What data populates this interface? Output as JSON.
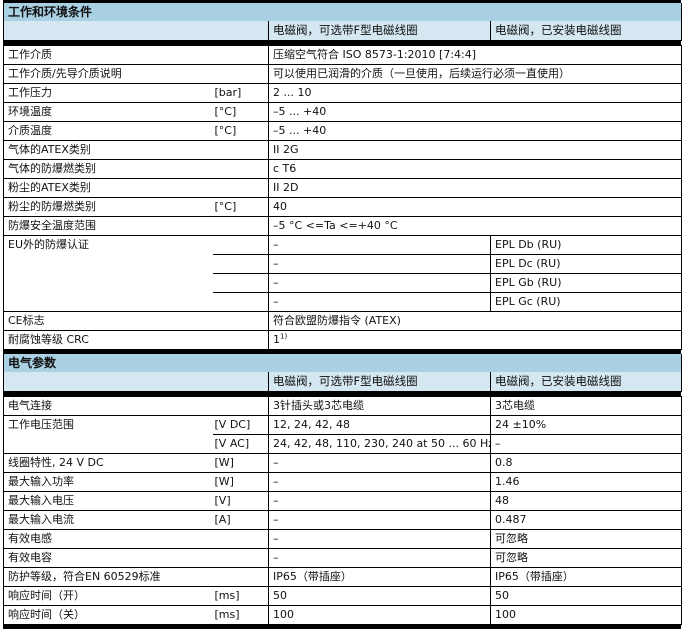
{
  "sections": [
    {
      "title": "工作和环境条件",
      "col_headers": [
        "电磁阀，可选带F型电磁线圈",
        "电磁阀，已安装电磁线圈"
      ],
      "groups": [
        {
          "label": "工作介质",
          "rows": [
            {
              "unit": "",
              "a": "压缩空气符合 ISO 8573-1:2010 [7:4:4]"
            }
          ]
        },
        {
          "label": "工作介质/先导介质说明",
          "rows": [
            {
              "unit": "",
              "a": "可以使用已润滑的介质（一旦使用，后续运行必须一直使用）"
            }
          ]
        },
        {
          "label": "工作压力",
          "rows": [
            {
              "unit": "[bar]",
              "a": "2 ... 10"
            }
          ]
        },
        {
          "label": "环境温度",
          "rows": [
            {
              "unit": "[°C]",
              "a": "–5 ... +40"
            }
          ]
        },
        {
          "label": "介质温度",
          "rows": [
            {
              "unit": "[°C]",
              "a": "–5 ... +40"
            }
          ]
        },
        {
          "label": "气体的ATEX类别",
          "rows": [
            {
              "unit": "",
              "a": "II 2G"
            }
          ]
        },
        {
          "label": "气体的防爆燃类别",
          "rows": [
            {
              "unit": "",
              "a": "c T6"
            }
          ]
        },
        {
          "label": "粉尘的ATEX类别",
          "rows": [
            {
              "unit": "",
              "a": "II 2D"
            }
          ]
        },
        {
          "label": "粉尘的防爆燃类别",
          "rows": [
            {
              "unit": "[°C]",
              "a": "40"
            }
          ]
        },
        {
          "label": "防爆安全温度范围",
          "rows": [
            {
              "unit": "",
              "a": "–5 °C <=Ta <=+40 °C"
            }
          ]
        },
        {
          "label": "EU外的防爆认证",
          "rows": [
            {
              "unit": "",
              "a": "–",
              "b": "EPL Db (RU)"
            },
            {
              "unit": "",
              "a": "–",
              "b": "EPL Dc (RU)"
            },
            {
              "unit": "",
              "a": "–",
              "b": "EPL Gb (RU)"
            },
            {
              "unit": "",
              "a": "–",
              "b": "EPL Gc (RU)"
            }
          ]
        },
        {
          "label": "CE标志",
          "rows": [
            {
              "unit": "",
              "a": "符合欧盟防爆指令 (ATEX)"
            }
          ]
        },
        {
          "label": "耐腐蚀等级 CRC",
          "rows": [
            {
              "unit": "",
              "a": "1",
              "a_sup": "1)"
            }
          ]
        }
      ]
    },
    {
      "title": "电气参数",
      "col_headers": [
        "电磁阀，可选带F型电磁线圈",
        "电磁阀，已安装电磁线圈"
      ],
      "groups": [
        {
          "label": "电气连接",
          "rows": [
            {
              "unit": "",
              "a": "3针插头或3芯电缆",
              "b": "3芯电缆"
            }
          ]
        },
        {
          "label": "工作电压范围",
          "rows": [
            {
              "unit": "[V DC]",
              "a": "12, 24, 42, 48",
              "b": "24 ±10%"
            },
            {
              "unit": "[V AC]",
              "a": "24, 42, 48, 110, 230, 240 at 50 ... 60 Hz",
              "b": "–"
            }
          ]
        },
        {
          "label": "线圈特性, 24 V DC",
          "rows": [
            {
              "unit": "[W]",
              "a": "–",
              "b": "0.8"
            }
          ]
        },
        {
          "label": "最大输入功率",
          "rows": [
            {
              "unit": "[W]",
              "a": "–",
              "b": "1.46"
            }
          ]
        },
        {
          "label": "最大输入电压",
          "rows": [
            {
              "unit": "[V]",
              "a": "–",
              "b": "48"
            }
          ]
        },
        {
          "label": "最大输入电流",
          "rows": [
            {
              "unit": "[A]",
              "a": "–",
              "b": "0.487"
            }
          ]
        },
        {
          "label": "有效电感",
          "rows": [
            {
              "unit": "",
              "a": "–",
              "b": "可忽略"
            }
          ]
        },
        {
          "label": "有效电容",
          "rows": [
            {
              "unit": "",
              "a": "–",
              "b": "可忽略"
            }
          ]
        },
        {
          "label": "防护等级，符合EN 60529标准",
          "rows": [
            {
              "unit": "",
              "a": "IP65（带插座）",
              "b": "IP65（带插座）"
            }
          ]
        },
        {
          "label": "响应时间（开）",
          "rows": [
            {
              "unit": "[ms]",
              "a": "50",
              "b": "50"
            }
          ]
        },
        {
          "label": "响应时间（关）",
          "rows": [
            {
              "unit": "[ms]",
              "a": "100",
              "b": "100"
            }
          ]
        }
      ]
    }
  ]
}
